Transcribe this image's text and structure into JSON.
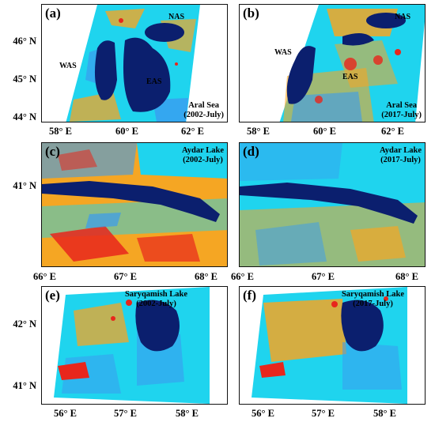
{
  "colors": {
    "water": "#0b1f6e",
    "cyan": "#1fd4ee",
    "lightblue": "#3a9bf0",
    "orange": "#f5a623",
    "red": "#e8261c"
  },
  "panels": [
    {
      "label": "(a)",
      "site_name": "Aral Sea",
      "site_date": "(2002-July)",
      "regions": [
        "NAS",
        "WAS",
        "EAS"
      ],
      "x_ticks": [
        "58° E",
        "60° E",
        "62° E"
      ],
      "y_ticks": [
        "46° N",
        "45° N",
        "44° N"
      ]
    },
    {
      "label": "(b)",
      "site_name": "Aral Sea",
      "site_date": "(2017-July)",
      "regions": [
        "NAS",
        "WAS",
        "EAS"
      ],
      "x_ticks": [
        "58° E",
        "60° E",
        "62° E"
      ]
    },
    {
      "label": "(c)",
      "site_name": "Aydar Lake",
      "site_date": "(2002-July)",
      "x_ticks": [
        "66° E",
        "67° E",
        "68° E"
      ],
      "y_ticks": [
        "41° N"
      ]
    },
    {
      "label": "(d)",
      "site_name": "Aydar Lake",
      "site_date": "(2017-July)",
      "x_ticks": [
        "66° E",
        "67° E",
        "68° E"
      ]
    },
    {
      "label": "(e)",
      "site_name": "Saryqamish Lake",
      "site_date": "(2002-July)",
      "x_ticks": [
        "56° E",
        "57° E",
        "58° E"
      ],
      "y_ticks": [
        "42° N",
        "41° N"
      ]
    },
    {
      "label": "(f)",
      "site_name": "Saryqamish Lake",
      "site_date": "(2017-July)",
      "x_ticks": [
        "56° E",
        "57° E",
        "58° E"
      ]
    }
  ]
}
